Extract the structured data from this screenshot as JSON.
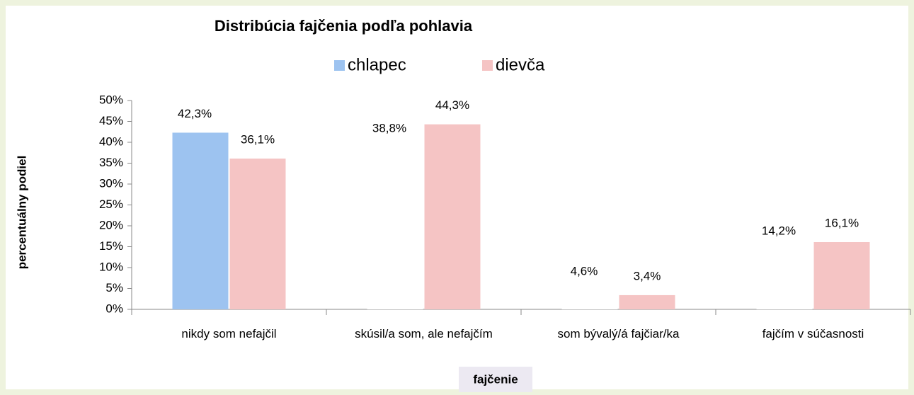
{
  "chart_data": {
    "type": "bar",
    "title": "Distribúcia fajčenia podľa pohlavia",
    "xlabel": "fajčenie",
    "ylabel": "percentuálny podiel",
    "categories": [
      "nikdy som nefajčil",
      "skúsil/a som, ale nefajčím",
      "som bývalý/á fajčiar/ka",
      "fajčím v súčasnosti"
    ],
    "series": [
      {
        "name": "chlapec",
        "color": "#9dc3f0",
        "colors": [
          "#9dc3f0",
          "#ffffff",
          "#ffffff",
          "#ffffff"
        ],
        "values": [
          42.3,
          38.8,
          4.6,
          14.2
        ],
        "value_labels": [
          "42,3%",
          "38,8%",
          "4,6%",
          "14,2%"
        ]
      },
      {
        "name": "dievča",
        "color": "#f5c4c4",
        "values": [
          36.1,
          44.3,
          3.4,
          16.1
        ],
        "value_labels": [
          "36,1%",
          "44,3%",
          "3,4%",
          "16,1%"
        ]
      }
    ],
    "ylim": [
      0,
      50
    ],
    "yticks": [
      {
        "value": 0,
        "label": "0%"
      },
      {
        "value": 5,
        "label": "5%"
      },
      {
        "value": 10,
        "label": "10%"
      },
      {
        "value": 15,
        "label": "15%"
      },
      {
        "value": 20,
        "label": "20%"
      },
      {
        "value": 25,
        "label": "25%"
      },
      {
        "value": 30,
        "label": "30%"
      },
      {
        "value": 35,
        "label": "35%"
      },
      {
        "value": 40,
        "label": "40%"
      },
      {
        "value": 45,
        "label": "45%"
      },
      {
        "value": 50,
        "label": "50%"
      }
    ],
    "legend": "top"
  }
}
